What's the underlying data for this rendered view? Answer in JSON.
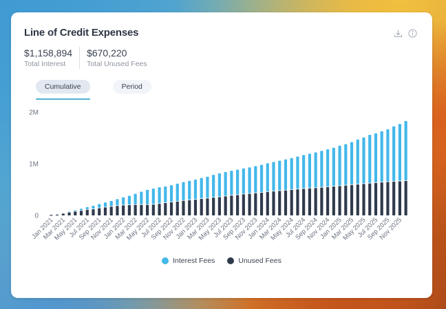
{
  "card": {
    "title": "Line of Credit Expenses",
    "icons": [
      "download-icon",
      "info-icon"
    ]
  },
  "stats": [
    {
      "value": "$1,158,894",
      "label": "Total Interest"
    },
    {
      "value": "$670,220",
      "label": "Total Unused Fees"
    }
  ],
  "tabs": [
    {
      "label": "Cumulative",
      "active": true
    },
    {
      "label": "Period",
      "active": false
    }
  ],
  "colors": {
    "interest": "#43b8ea",
    "unused": "#2f3a4c",
    "axis_text": "#6b7280"
  },
  "chart_data": {
    "type": "bar",
    "stacked": true,
    "title": "Line of Credit Expenses",
    "xlabel": "",
    "ylabel": "",
    "ylim": [
      0,
      2000000
    ],
    "yticks": [
      0,
      1000000,
      2000000
    ],
    "ytick_labels": [
      "0",
      "1M",
      "2M"
    ],
    "grid": false,
    "legend": "bottom-center",
    "categories": [
      "Jan 2021",
      "Feb 2021",
      "Mar 2021",
      "Apr 2021",
      "May 2021",
      "Jun 2021",
      "Jul 2021",
      "Aug 2021",
      "Sep 2021",
      "Oct 2021",
      "Nov 2021",
      "Dec 2021",
      "Jan 2022",
      "Feb 2022",
      "Mar 2022",
      "Apr 2022",
      "May 2022",
      "Jun 2022",
      "Jul 2022",
      "Aug 2022",
      "Sep 2022",
      "Oct 2022",
      "Nov 2022",
      "Dec 2022",
      "Jan 2023",
      "Feb 2023",
      "Mar 2023",
      "Apr 2023",
      "May 2023",
      "Jun 2023",
      "Jul 2023",
      "Aug 2023",
      "Sep 2023",
      "Oct 2023",
      "Nov 2023",
      "Dec 2023",
      "Jan 2024",
      "Feb 2024",
      "Mar 2024",
      "Apr 2024",
      "May 2024",
      "Jun 2024",
      "Jul 2024",
      "Aug 2024",
      "Sep 2024",
      "Oct 2024",
      "Nov 2024",
      "Dec 2024",
      "Jan 2025",
      "Feb 2025",
      "Mar 2025",
      "Apr 2025",
      "May 2025",
      "Jun 2025",
      "Jul 2025",
      "Aug 2025",
      "Sep 2025",
      "Oct 2025",
      "Nov 2025",
      "Dec 2025"
    ],
    "tick_labels": [
      "Jan 2021",
      "Mar 2021",
      "May 2021",
      "Jul 2021",
      "Sep 2021",
      "Nov 2021",
      "Jan 2022",
      "Mar 2022",
      "May 2022",
      "Jul 2022",
      "Sep 2022",
      "Nov 2022",
      "Jan 2023",
      "Mar 2023",
      "May 2023",
      "Jul 2023",
      "Sep 2023",
      "Nov 2023",
      "Jan 2024",
      "Mar 2024",
      "May 2024",
      "Jul 2024",
      "Sep 2024",
      "Nov 2024",
      "Jan 2025",
      "Mar 2025",
      "May 2025",
      "Jul 2025",
      "Sep 2025",
      "Nov 2025"
    ],
    "series": [
      {
        "name": "Unused Fees",
        "values": [
          10000,
          15000,
          35000,
          55000,
          75000,
          90000,
          110000,
          120000,
          140000,
          155000,
          170000,
          185000,
          195000,
          200000,
          205000,
          205000,
          205000,
          210000,
          225000,
          240000,
          255000,
          270000,
          285000,
          295000,
          305000,
          320000,
          330000,
          345000,
          355000,
          370000,
          385000,
          395000,
          410000,
          420000,
          430000,
          440000,
          455000,
          465000,
          475000,
          485000,
          495000,
          505000,
          515000,
          525000,
          530000,
          540000,
          550000,
          560000,
          570000,
          580000,
          590000,
          600000,
          610000,
          620000,
          630000,
          640000,
          648000,
          655000,
          662000,
          670220
        ]
      },
      {
        "name": "Interest Fees",
        "values": [
          0,
          0,
          0,
          15000,
          25000,
          40000,
          50000,
          65000,
          80000,
          95000,
          110000,
          130000,
          155000,
          180000,
          215000,
          255000,
          290000,
          310000,
          320000,
          320000,
          330000,
          345000,
          360000,
          375000,
          390000,
          405000,
          420000,
          440000,
          460000,
          470000,
          480000,
          490000,
          500000,
          510000,
          525000,
          540000,
          555000,
          570000,
          585000,
          600000,
          615000,
          635000,
          655000,
          670000,
          690000,
          710000,
          730000,
          750000,
          780000,
          800000,
          830000,
          870000,
          900000,
          940000,
          960000,
          990000,
          1020000,
          1070000,
          1110000,
          1158894
        ]
      }
    ]
  },
  "legend": [
    {
      "label": "Interest Fees",
      "color": "#43b8ea"
    },
    {
      "label": "Unused Fees",
      "color": "#2f3a4c"
    }
  ]
}
